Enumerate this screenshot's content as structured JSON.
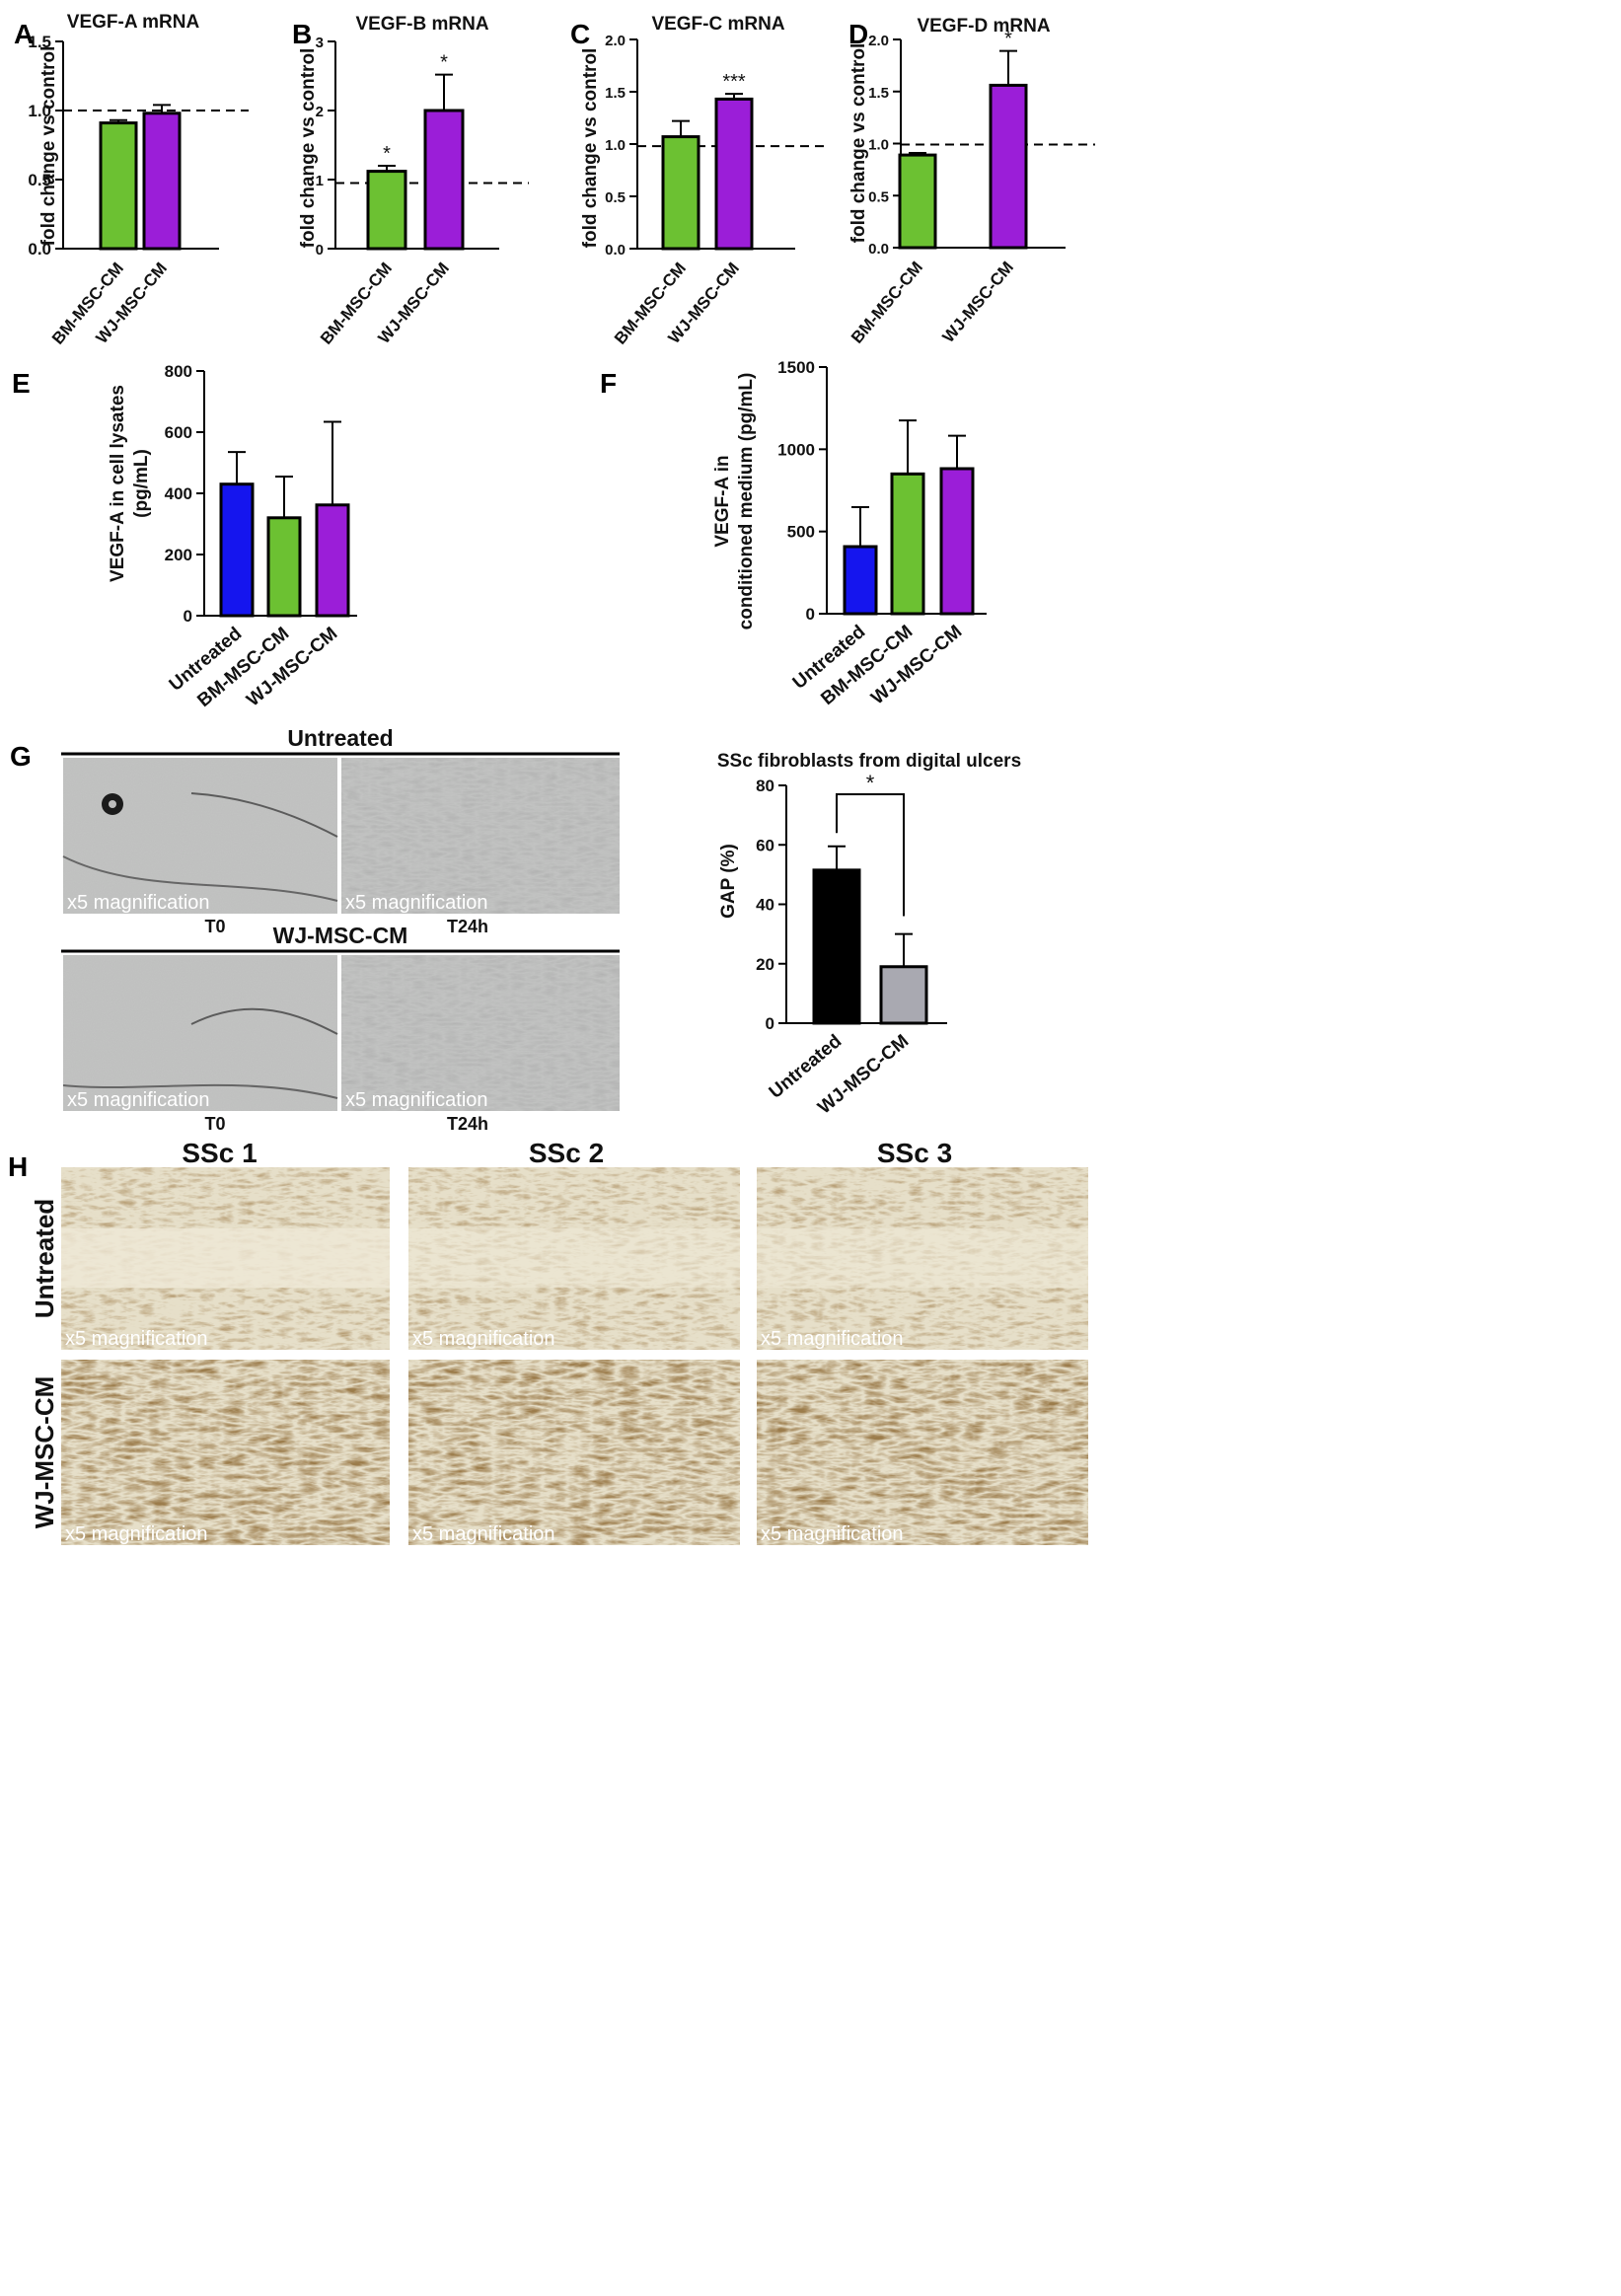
{
  "panels": {
    "letters": [
      "A",
      "B",
      "C",
      "D",
      "E",
      "F",
      "G",
      "H"
    ]
  },
  "chart_data": [
    {
      "id": "A",
      "type": "bar",
      "title": "VEGF-A mRNA",
      "xlabel": "",
      "ylabel": "fold change vs control",
      "categories": [
        "BM-MSC-CM",
        "WJ-MSC-CM"
      ],
      "values": [
        0.91,
        0.98
      ],
      "errors": [
        0.02,
        0.06
      ],
      "colors": [
        "#6cc132",
        "#9b1ed8"
      ],
      "ylim": [
        0,
        1.5
      ],
      "yticks": [
        0,
        0.5,
        1.0,
        1.5
      ],
      "ytick_labels": [
        "0.0",
        "0.5",
        "1.0",
        "1.5"
      ],
      "reference_line": 1.0,
      "significance": [
        "",
        ""
      ]
    },
    {
      "id": "B",
      "type": "bar",
      "title": "VEGF-B mRNA",
      "xlabel": "",
      "ylabel": "fold change vs control",
      "categories": [
        "BM-MSC-CM",
        "WJ-MSC-CM"
      ],
      "values": [
        1.12,
        2.0
      ],
      "errors": [
        0.08,
        0.52
      ],
      "colors": [
        "#6cc132",
        "#9b1ed8"
      ],
      "ylim": [
        0,
        3
      ],
      "yticks": [
        0,
        1,
        2,
        3
      ],
      "ytick_labels": [
        "0",
        "1",
        "2",
        "3"
      ],
      "reference_line": 0.95,
      "significance": [
        "*",
        "*"
      ]
    },
    {
      "id": "C",
      "type": "bar",
      "title": "VEGF-C mRNA",
      "xlabel": "",
      "ylabel": "fold change vs control",
      "categories": [
        "BM-MSC-CM",
        "WJ-MSC-CM"
      ],
      "values": [
        1.07,
        1.43
      ],
      "errors": [
        0.15,
        0.05
      ],
      "colors": [
        "#6cc132",
        "#9b1ed8"
      ],
      "ylim": [
        0,
        2.0
      ],
      "yticks": [
        0,
        0.5,
        1.0,
        1.5,
        2.0
      ],
      "ytick_labels": [
        "0.0",
        "0.5",
        "1.0",
        "1.5",
        "2.0"
      ],
      "reference_line": 0.98,
      "significance": [
        "",
        "***"
      ]
    },
    {
      "id": "D",
      "type": "bar",
      "title": "VEGF-D mRNA",
      "xlabel": "",
      "ylabel": "fold change vs control",
      "categories": [
        "BM-MSC-CM",
        "WJ-MSC-CM"
      ],
      "values": [
        0.89,
        1.56
      ],
      "errors": [
        0.02,
        0.33
      ],
      "colors": [
        "#6cc132",
        "#9b1ed8"
      ],
      "ylim": [
        0,
        2.0
      ],
      "yticks": [
        0,
        0.5,
        1.0,
        1.5,
        2.0
      ],
      "ytick_labels": [
        "0.0",
        "0.5",
        "1.0",
        "1.5",
        "2.0"
      ],
      "reference_line": 0.99,
      "significance": [
        "",
        "*"
      ]
    },
    {
      "id": "E",
      "type": "bar",
      "title": "",
      "xlabel": "",
      "ylabel": [
        "VEGF-A in cell lysates",
        "(pg/mL)"
      ],
      "categories": [
        "Untreated",
        "BM-MSC-CM",
        "WJ-MSC-CM"
      ],
      "values": [
        430,
        320,
        362
      ],
      "errors": [
        105,
        135,
        272
      ],
      "colors": [
        "#1515ee",
        "#6cc132",
        "#9b1ed8"
      ],
      "ylim": [
        0,
        800
      ],
      "yticks": [
        0,
        200,
        400,
        600,
        800
      ],
      "ytick_labels": [
        "0",
        "200",
        "400",
        "600",
        "800"
      ],
      "reference_line": null,
      "significance": [
        "",
        "",
        ""
      ]
    },
    {
      "id": "F",
      "type": "bar",
      "title": "",
      "xlabel": "",
      "ylabel": [
        "VEGF-A in",
        "conditioned medium (pg/mL)"
      ],
      "categories": [
        "Untreated",
        "BM-MSC-CM",
        "WJ-MSC-CM"
      ],
      "values": [
        408,
        850,
        882
      ],
      "errors": [
        240,
        325,
        200
      ],
      "colors": [
        "#1515ee",
        "#6cc132",
        "#9b1ed8"
      ],
      "ylim": [
        0,
        1500
      ],
      "yticks": [
        0,
        500,
        1000,
        1500
      ],
      "ytick_labels": [
        "0",
        "500",
        "1000",
        "1500"
      ],
      "reference_line": null,
      "significance": [
        "",
        "",
        ""
      ]
    },
    {
      "id": "G",
      "type": "bar",
      "title": "SSc fibroblasts from digital ulcers",
      "xlabel": "",
      "ylabel": "GAP (%)",
      "categories": [
        "Untreated",
        "WJ-MSC-CM"
      ],
      "values": [
        51.5,
        19
      ],
      "errors": [
        8,
        11
      ],
      "colors": [
        "#000000",
        "#a9a9b1"
      ],
      "ylim": [
        0,
        80
      ],
      "yticks": [
        0,
        20,
        40,
        60,
        80
      ],
      "ytick_labels": [
        "0",
        "20",
        "40",
        "60",
        "80"
      ],
      "reference_line": null,
      "significance_bracket": "*"
    }
  ],
  "panel_g_images": {
    "group_titles": [
      "Untreated",
      "WJ-MSC-CM"
    ],
    "timepoints": [
      "T0",
      "T24h"
    ],
    "magnification": "x5 magnification"
  },
  "panel_h_images": {
    "columns": [
      "SSc 1",
      "SSc 2",
      "SSc 3"
    ],
    "rows": [
      "Untreated",
      "WJ-MSC-CM"
    ],
    "magnification": "x5 magnification"
  }
}
